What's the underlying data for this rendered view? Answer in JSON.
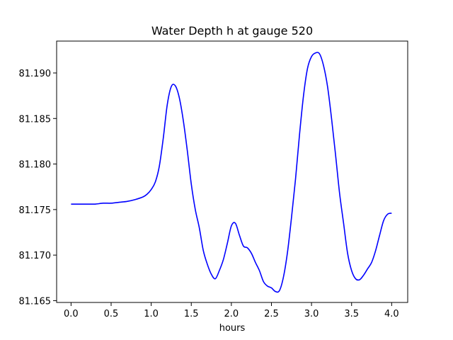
{
  "chart_data": {
    "type": "line",
    "title": "Water Depth h at gauge 520",
    "xlabel": "hours",
    "ylabel": "",
    "xlim": [
      -0.18,
      4.2
    ],
    "ylim": [
      81.1648,
      81.1935
    ],
    "xticks": [
      0.0,
      0.5,
      1.0,
      1.5,
      2.0,
      2.5,
      3.0,
      3.5,
      4.0
    ],
    "xtick_labels": [
      "0.0",
      "0.5",
      "1.0",
      "1.5",
      "2.0",
      "2.5",
      "3.0",
      "3.5",
      "4.0"
    ],
    "yticks": [
      81.165,
      81.17,
      81.175,
      81.18,
      81.185,
      81.19
    ],
    "ytick_labels": [
      "81.165",
      "81.170",
      "81.175",
      "81.180",
      "81.185",
      "81.190"
    ],
    "grid": false,
    "series": [
      {
        "color": "#0000ff",
        "x": [
          0.0,
          0.1,
          0.2,
          0.3,
          0.4,
          0.5,
          0.6,
          0.7,
          0.8,
          0.9,
          0.95,
          1.0,
          1.05,
          1.1,
          1.15,
          1.2,
          1.25,
          1.3,
          1.35,
          1.4,
          1.45,
          1.5,
          1.55,
          1.6,
          1.65,
          1.7,
          1.75,
          1.8,
          1.85,
          1.9,
          1.95,
          2.0,
          2.05,
          2.1,
          2.15,
          2.2,
          2.25,
          2.3,
          2.35,
          2.4,
          2.45,
          2.5,
          2.55,
          2.6,
          2.65,
          2.7,
          2.75,
          2.8,
          2.85,
          2.9,
          2.95,
          3.0,
          3.05,
          3.1,
          3.15,
          3.2,
          3.25,
          3.3,
          3.35,
          3.4,
          3.45,
          3.5,
          3.55,
          3.6,
          3.65,
          3.7,
          3.75,
          3.8,
          3.85,
          3.9,
          3.95,
          4.0
        ],
        "y": [
          81.1756,
          81.1756,
          81.1756,
          81.1756,
          81.1757,
          81.1757,
          81.1758,
          81.1759,
          81.1761,
          81.1764,
          81.1767,
          81.1772,
          81.178,
          81.1797,
          81.1828,
          81.1865,
          81.1885,
          81.1886,
          81.1873,
          81.1848,
          81.1815,
          81.1778,
          81.175,
          81.173,
          81.1705,
          81.169,
          81.1679,
          81.1674,
          81.1683,
          81.1695,
          81.1713,
          81.1732,
          81.1735,
          81.1722,
          81.171,
          81.1708,
          81.1702,
          81.1692,
          81.1683,
          81.1671,
          81.1666,
          81.1664,
          81.166,
          81.1661,
          81.1676,
          81.1703,
          81.1741,
          81.1783,
          81.1832,
          81.1875,
          81.1905,
          81.1918,
          81.1922,
          81.1921,
          81.1908,
          81.1885,
          81.185,
          81.181,
          81.1768,
          81.1735,
          81.1702,
          81.1683,
          81.1674,
          81.1673,
          81.1678,
          81.1685,
          81.1692,
          81.1705,
          81.1722,
          81.1738,
          81.1745,
          81.1746
        ]
      }
    ]
  }
}
